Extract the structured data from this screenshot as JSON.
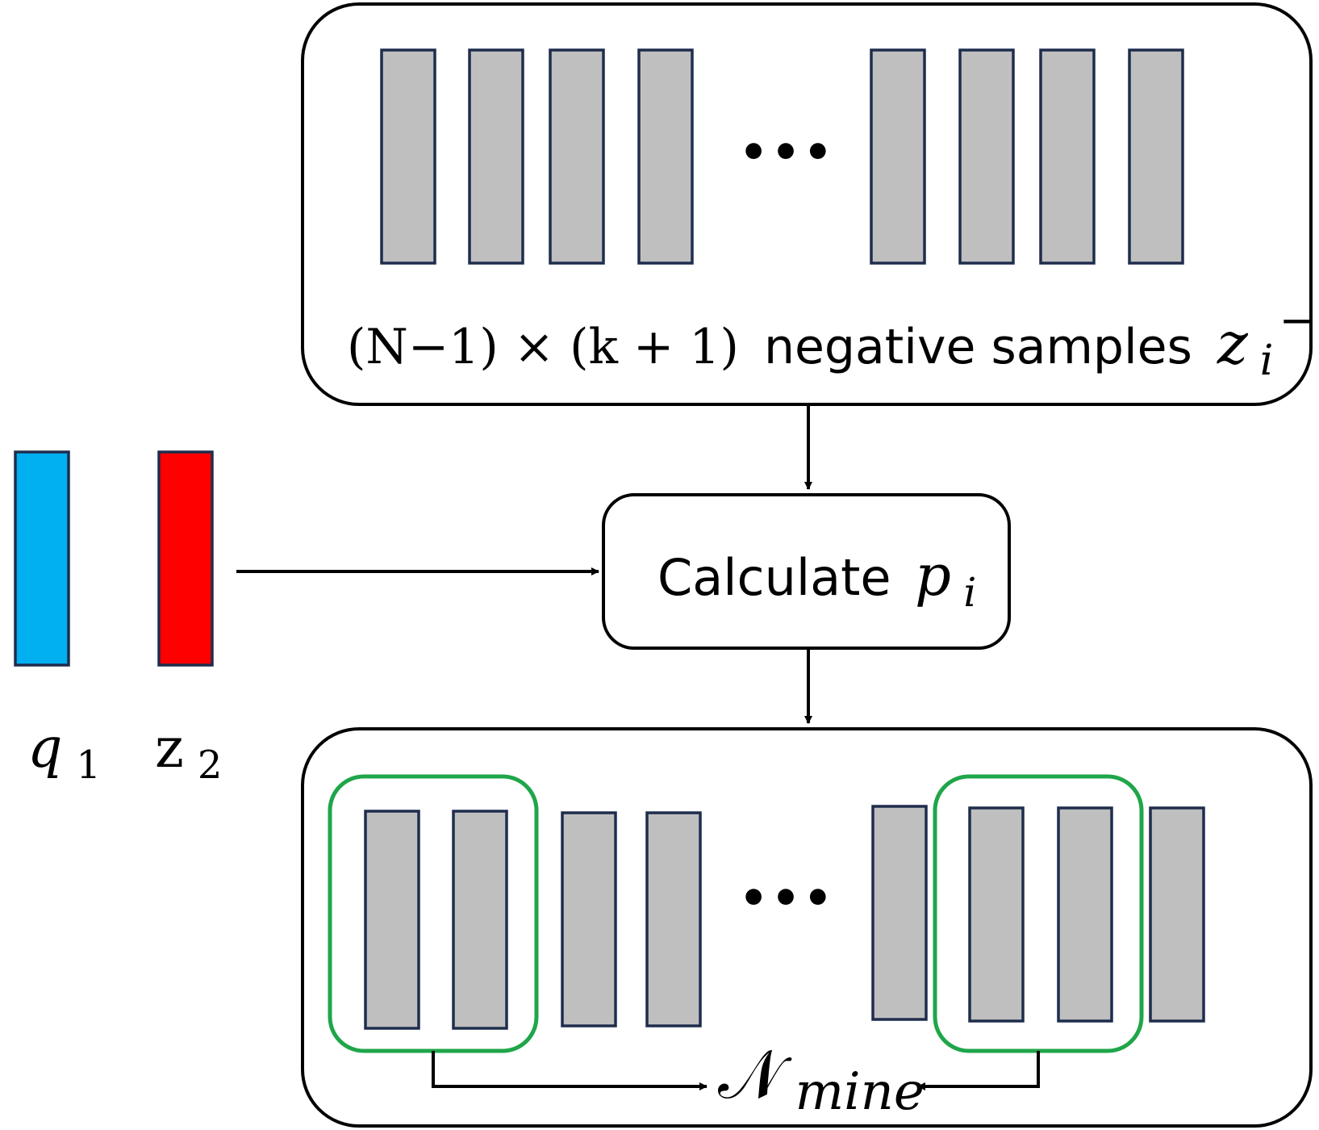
{
  "top_box": {
    "caption_prefix": "(N−1) × (k + 1)",
    "caption_text": "negative samples",
    "caption_var": "z",
    "caption_sub": "i",
    "caption_sup": "−",
    "ellipsis": "•••"
  },
  "calculate_box": {
    "label": "Calculate",
    "var": "p",
    "sub": "i"
  },
  "inputs": {
    "q": {
      "var": "q",
      "sub": "1",
      "color": "#00b0f0"
    },
    "z": {
      "var": "z",
      "sub": "2",
      "color": "#ff0000"
    }
  },
  "bottom_box": {
    "ellipsis": "•••",
    "mine_label": "𝒩",
    "mine_sub": "mine"
  },
  "colors": {
    "sample_fill": "#bfbfbf",
    "sample_stroke": "#1f2d4d",
    "highlight": "#1fa64a",
    "line": "#000000"
  }
}
